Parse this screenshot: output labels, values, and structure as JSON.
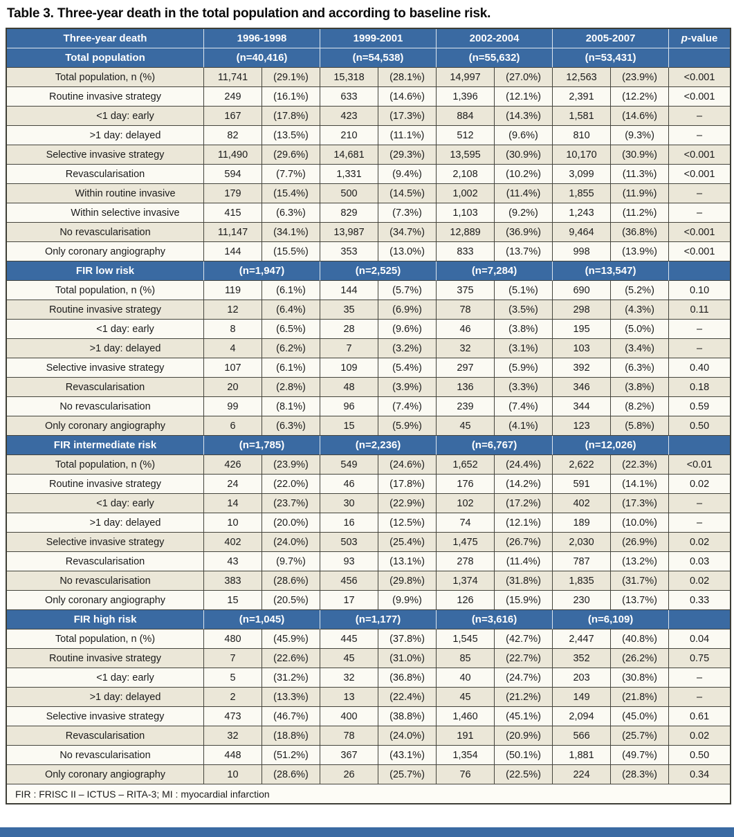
{
  "title": "Table 3. Three-year death in the total population and according to baseline risk.",
  "columns": {
    "label_header": "Three-year death",
    "periods": [
      "1996-1998",
      "1999-2001",
      "2002-2004",
      "2005-2007"
    ],
    "pvalue_header": "p-value"
  },
  "colors": {
    "header_blue": "#3a6aa2",
    "row_cream": "#ebe7d8",
    "row_white": "#fbfaf3",
    "grid_line": "#43433b"
  },
  "sections": [
    {
      "name": "Total population",
      "ns": [
        "(n=40,416)",
        "(n=54,538)",
        "(n=55,632)",
        "(n=53,431)"
      ],
      "rows": [
        {
          "label": "Total population, n (%)",
          "indent": false,
          "cells": [
            "11,741",
            "(29.1%)",
            "15,318",
            "(28.1%)",
            "14,997",
            "(27.0%)",
            "12,563",
            "(23.9%)"
          ],
          "p": "<0.001"
        },
        {
          "label": "Routine invasive strategy",
          "indent": false,
          "cells": [
            "249",
            "(16.1%)",
            "633",
            "(14.6%)",
            "1,396",
            "(12.1%)",
            "2,391",
            "(12.2%)"
          ],
          "p": "<0.001"
        },
        {
          "label": "<1 day: early",
          "indent": true,
          "cells": [
            "167",
            "(17.8%)",
            "423",
            "(17.3%)",
            "884",
            "(14.3%)",
            "1,581",
            "(14.6%)"
          ],
          "p": "–"
        },
        {
          "label": ">1 day: delayed",
          "indent": true,
          "cells": [
            "82",
            "(13.5%)",
            "210",
            "(11.1%)",
            "512",
            "(9.6%)",
            "810",
            "(9.3%)"
          ],
          "p": "–"
        },
        {
          "label": "Selective invasive strategy",
          "indent": false,
          "cells": [
            "11,490",
            "(29.6%)",
            "14,681",
            "(29.3%)",
            "13,595",
            "(30.9%)",
            "10,170",
            "(30.9%)"
          ],
          "p": "<0.001"
        },
        {
          "label": "Revascularisation",
          "indent": false,
          "cells": [
            "594",
            "(7.7%)",
            "1,331",
            "(9.4%)",
            "2,108",
            "(10.2%)",
            "3,099",
            "(11.3%)"
          ],
          "p": "<0.001"
        },
        {
          "label": "Within routine invasive",
          "indent": true,
          "cells": [
            "179",
            "(15.4%)",
            "500",
            "(14.5%)",
            "1,002",
            "(11.4%)",
            "1,855",
            "(11.9%)"
          ],
          "p": "–"
        },
        {
          "label": "Within selective invasive",
          "indent": true,
          "cells": [
            "415",
            "(6.3%)",
            "829",
            "(7.3%)",
            "1,103",
            "(9.2%)",
            "1,243",
            "(11.2%)"
          ],
          "p": "–"
        },
        {
          "label": "No revascularisation",
          "indent": false,
          "cells": [
            "11,147",
            "(34.1%)",
            "13,987",
            "(34.7%)",
            "12,889",
            "(36.9%)",
            "9,464",
            "(36.8%)"
          ],
          "p": "<0.001"
        },
        {
          "label": "Only coronary angiography",
          "indent": false,
          "cells": [
            "144",
            "(15.5%)",
            "353",
            "(13.0%)",
            "833",
            "(13.7%)",
            "998",
            "(13.9%)"
          ],
          "p": "<0.001"
        }
      ]
    },
    {
      "name": "FIR low risk",
      "ns": [
        "(n=1,947)",
        "(n=2,525)",
        "(n=7,284)",
        "(n=13,547)"
      ],
      "rows": [
        {
          "label": "Total population, n (%)",
          "indent": false,
          "cells": [
            "119",
            "(6.1%)",
            "144",
            "(5.7%)",
            "375",
            "(5.1%)",
            "690",
            "(5.2%)"
          ],
          "p": "0.10"
        },
        {
          "label": "Routine invasive strategy",
          "indent": false,
          "cells": [
            "12",
            "(6.4%)",
            "35",
            "(6.9%)",
            "78",
            "(3.5%)",
            "298",
            "(4.3%)"
          ],
          "p": "0.11"
        },
        {
          "label": "<1 day: early",
          "indent": true,
          "cells": [
            "8",
            "(6.5%)",
            "28",
            "(9.6%)",
            "46",
            "(3.8%)",
            "195",
            "(5.0%)"
          ],
          "p": "–"
        },
        {
          "label": ">1 day: delayed",
          "indent": true,
          "cells": [
            "4",
            "(6.2%)",
            "7",
            "(3.2%)",
            "32",
            "(3.1%)",
            "103",
            "(3.4%)"
          ],
          "p": "–"
        },
        {
          "label": "Selective invasive strategy",
          "indent": false,
          "cells": [
            "107",
            "(6.1%)",
            "109",
            "(5.4%)",
            "297",
            "(5.9%)",
            "392",
            "(6.3%)"
          ],
          "p": "0.40"
        },
        {
          "label": "Revascularisation",
          "indent": false,
          "cells": [
            "20",
            "(2.8%)",
            "48",
            "(3.9%)",
            "136",
            "(3.3%)",
            "346",
            "(3.8%)"
          ],
          "p": "0.18"
        },
        {
          "label": "No revascularisation",
          "indent": false,
          "cells": [
            "99",
            "(8.1%)",
            "96",
            "(7.4%)",
            "239",
            "(7.4%)",
            "344",
            "(8.2%)"
          ],
          "p": "0.59"
        },
        {
          "label": "Only coronary angiography",
          "indent": false,
          "cells": [
            "6",
            "(6.3%)",
            "15",
            "(5.9%)",
            "45",
            "(4.1%)",
            "123",
            "(5.8%)"
          ],
          "p": "0.50"
        }
      ]
    },
    {
      "name": "FIR intermediate risk",
      "ns": [
        "(n=1,785)",
        "(n=2,236)",
        "(n=6,767)",
        "(n=12,026)"
      ],
      "rows": [
        {
          "label": "Total population, n (%)",
          "indent": false,
          "cells": [
            "426",
            "(23.9%)",
            "549",
            "(24.6%)",
            "1,652",
            "(24.4%)",
            "2,622",
            "(22.3%)"
          ],
          "p": "<0.01"
        },
        {
          "label": "Routine invasive strategy",
          "indent": false,
          "cells": [
            "24",
            "(22.0%)",
            "46",
            "(17.8%)",
            "176",
            "(14.2%)",
            "591",
            "(14.1%)"
          ],
          "p": "0.02"
        },
        {
          "label": "<1 day: early",
          "indent": true,
          "cells": [
            "14",
            "(23.7%)",
            "30",
            "(22.9%)",
            "102",
            "(17.2%)",
            "402",
            "(17.3%)"
          ],
          "p": "–"
        },
        {
          "label": ">1 day: delayed",
          "indent": true,
          "cells": [
            "10",
            "(20.0%)",
            "16",
            "(12.5%)",
            "74",
            "(12.1%)",
            "189",
            "(10.0%)"
          ],
          "p": "–"
        },
        {
          "label": "Selective invasive strategy",
          "indent": false,
          "cells": [
            "402",
            "(24.0%)",
            "503",
            "(25.4%)",
            "1,475",
            "(26.7%)",
            "2,030",
            "(26.9%)"
          ],
          "p": "0.02"
        },
        {
          "label": "Revascularisation",
          "indent": false,
          "cells": [
            "43",
            "(9.7%)",
            "93",
            "(13.1%)",
            "278",
            "(11.4%)",
            "787",
            "(13.2%)"
          ],
          "p": "0.03"
        },
        {
          "label": "No revascularisation",
          "indent": false,
          "cells": [
            "383",
            "(28.6%)",
            "456",
            "(29.8%)",
            "1,374",
            "(31.8%)",
            "1,835",
            "(31.7%)"
          ],
          "p": "0.02"
        },
        {
          "label": "Only coronary angiography",
          "indent": false,
          "cells": [
            "15",
            "(20.5%)",
            "17",
            "(9.9%)",
            "126",
            "(15.9%)",
            "230",
            "(13.7%)"
          ],
          "p": "0.33"
        }
      ]
    },
    {
      "name": "FIR high risk",
      "ns": [
        "(n=1,045)",
        "(n=1,177)",
        "(n=3,616)",
        "(n=6,109)"
      ],
      "rows": [
        {
          "label": "Total population, n (%)",
          "indent": false,
          "cells": [
            "480",
            "(45.9%)",
            "445",
            "(37.8%)",
            "1,545",
            "(42.7%)",
            "2,447",
            "(40.8%)"
          ],
          "p": "0.04"
        },
        {
          "label": "Routine invasive strategy",
          "indent": false,
          "cells": [
            "7",
            "(22.6%)",
            "45",
            "(31.0%)",
            "85",
            "(22.7%)",
            "352",
            "(26.2%)"
          ],
          "p": "0.75"
        },
        {
          "label": "<1 day: early",
          "indent": true,
          "cells": [
            "5",
            "(31.2%)",
            "32",
            "(36.8%)",
            "40",
            "(24.7%)",
            "203",
            "(30.8%)"
          ],
          "p": "–"
        },
        {
          "label": ">1 day: delayed",
          "indent": true,
          "cells": [
            "2",
            "(13.3%)",
            "13",
            "(22.4%)",
            "45",
            "(21.2%)",
            "149",
            "(21.8%)"
          ],
          "p": "–"
        },
        {
          "label": "Selective invasive strategy",
          "indent": false,
          "cells": [
            "473",
            "(46.7%)",
            "400",
            "(38.8%)",
            "1,460",
            "(45.1%)",
            "2,094",
            "(45.0%)"
          ],
          "p": "0.61"
        },
        {
          "label": "Revascularisation",
          "indent": false,
          "cells": [
            "32",
            "(18.8%)",
            "78",
            "(24.0%)",
            "191",
            "(20.9%)",
            "566",
            "(25.7%)"
          ],
          "p": "0.02"
        },
        {
          "label": "No revascularisation",
          "indent": false,
          "cells": [
            "448",
            "(51.2%)",
            "367",
            "(43.1%)",
            "1,354",
            "(50.1%)",
            "1,881",
            "(49.7%)"
          ],
          "p": "0.50"
        },
        {
          "label": "Only coronary angiography",
          "indent": false,
          "cells": [
            "10",
            "(28.6%)",
            "26",
            "(25.7%)",
            "76",
            "(22.5%)",
            "224",
            "(28.3%)"
          ],
          "p": "0.34"
        }
      ]
    }
  ],
  "footnote": "FIR : FRISC II – ICTUS – RITA-3; MI : myocardial infarction"
}
